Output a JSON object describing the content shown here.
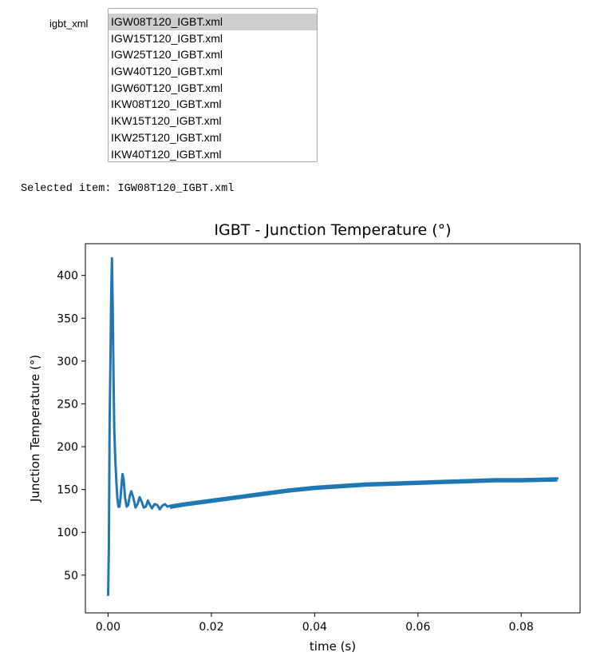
{
  "widget": {
    "label": "igbt_xml",
    "options": [
      "IGW08T120_IGBT.xml",
      "IGW15T120_IGBT.xml",
      "IGW25T120_IGBT.xml",
      "IGW40T120_IGBT.xml",
      "IGW60T120_IGBT.xml",
      "IKW08T120_IGBT.xml",
      "IKW15T120_IGBT.xml",
      "IKW25T120_IGBT.xml",
      "IKW40T120_IGBT.xml"
    ],
    "selected_index": 0
  },
  "output": {
    "text": "Selected item: IGW08T120_IGBT.xml"
  },
  "colors": {
    "series": "#1f77b4",
    "selected_bg": "#cecece"
  },
  "chart_data": {
    "type": "line",
    "title": "IGBT - Junction Temperature (°)",
    "xlabel": "time (s)",
    "ylabel": "Junction Temperature (°)",
    "xlim": [
      -0.0044,
      0.0914
    ],
    "ylim": [
      6,
      437
    ],
    "xticks": [
      0.0,
      0.02,
      0.04,
      0.06,
      0.08
    ],
    "xtick_labels": [
      "0.00",
      "0.02",
      "0.04",
      "0.06",
      "0.08"
    ],
    "yticks": [
      50,
      100,
      150,
      200,
      250,
      300,
      350,
      400
    ],
    "ytick_labels": [
      "50",
      "100",
      "150",
      "200",
      "250",
      "300",
      "350",
      "400"
    ],
    "grid": false,
    "series": [
      {
        "x": [
          0.0,
          0.00015,
          0.0003,
          0.00045,
          0.0006,
          0.00075,
          0.0009,
          0.00105,
          0.0012,
          0.0014,
          0.0016,
          0.0018,
          0.002,
          0.0022,
          0.0024,
          0.0026,
          0.0028,
          0.003,
          0.0033,
          0.0036,
          0.0039,
          0.0042,
          0.0045,
          0.0049,
          0.0053,
          0.0057,
          0.0061,
          0.0065,
          0.0069,
          0.0073,
          0.0077,
          0.0081,
          0.0085,
          0.009,
          0.0095,
          0.01,
          0.0105,
          0.011,
          0.0115,
          0.012,
          0.013,
          0.015,
          0.02,
          0.025,
          0.03,
          0.035,
          0.04,
          0.045,
          0.05,
          0.055,
          0.06,
          0.065,
          0.07,
          0.075,
          0.08,
          0.087
        ],
        "y": [
          27,
          80,
          230,
          300,
          380,
          420,
          360,
          280,
          220,
          185,
          160,
          140,
          130,
          130,
          140,
          155,
          168,
          162,
          140,
          130,
          132,
          143,
          148,
          140,
          129,
          133,
          141,
          136,
          129,
          130,
          137,
          132,
          128,
          133,
          132,
          127,
          131,
          133,
          130,
          131,
          132,
          134,
          138,
          142,
          146,
          150,
          153,
          155,
          157,
          158,
          159,
          160,
          161,
          162,
          162,
          163
        ]
      }
    ]
  }
}
